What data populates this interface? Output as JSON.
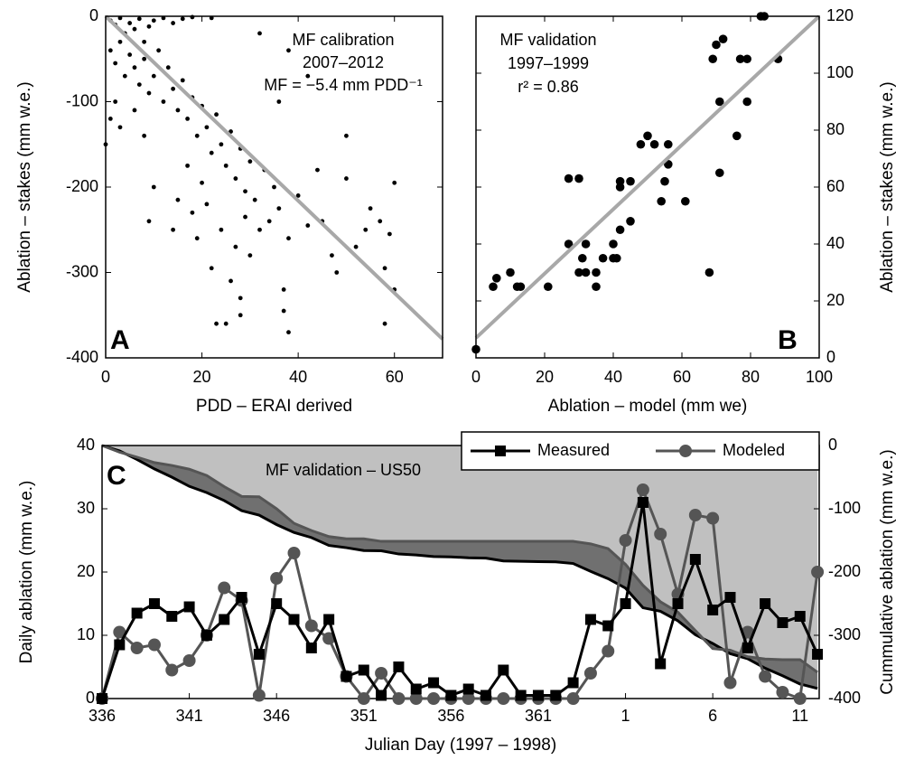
{
  "chart_data": [
    {
      "type": "scatter",
      "panel_label": "A",
      "xlabel": "PDD – ERAI derived",
      "ylabel": "Ablation – stakes (mm w.e.)",
      "annotations": [
        "MF calibration",
        "2007–2012",
        "MF = −5.4 mm PDD⁻¹"
      ],
      "y_axis_side": "left",
      "color": "#000000",
      "xlim": [
        0,
        70
      ],
      "xticks": [
        0,
        20,
        40,
        60
      ],
      "ylim": [
        -400,
        0
      ],
      "yticks": [
        -400,
        -300,
        -200,
        -100,
        0
      ],
      "fit_line": {
        "x": [
          0,
          70
        ],
        "y": [
          0,
          -378
        ],
        "color": "#a8a8a8"
      },
      "x": [
        1,
        2,
        3,
        4,
        5,
        6,
        7,
        8,
        9,
        10,
        12,
        14,
        16,
        18,
        22,
        1,
        2,
        3,
        4,
        5,
        6,
        7,
        8,
        9,
        10,
        11,
        12,
        13,
        14,
        15,
        16,
        17,
        18,
        19,
        20,
        21,
        22,
        23,
        24,
        25,
        26,
        27,
        28,
        29,
        30,
        0,
        1,
        2,
        3,
        6,
        8,
        10,
        9,
        14,
        15,
        17,
        18,
        19,
        20,
        21,
        22,
        23,
        24,
        25,
        26,
        27,
        28,
        28,
        29,
        30,
        31,
        32,
        33,
        34,
        35,
        36,
        37,
        37,
        38,
        38,
        40,
        42,
        44,
        45,
        47,
        48,
        50,
        50,
        52,
        54,
        55,
        57,
        58,
        58,
        59,
        60,
        60,
        32,
        38,
        42,
        36
      ],
      "y": [
        -5,
        -10,
        -2,
        -20,
        -8,
        -15,
        -3,
        -30,
        -12,
        -5,
        -2,
        -8,
        -3,
        -1,
        -2,
        -40,
        -55,
        -30,
        -70,
        -45,
        -60,
        -80,
        -50,
        -90,
        -70,
        -40,
        -100,
        -60,
        -85,
        -110,
        -75,
        -120,
        -95,
        -140,
        -105,
        -130,
        -160,
        -115,
        -150,
        -175,
        -135,
        -190,
        -155,
        -205,
        -170,
        -150,
        -120,
        -100,
        -130,
        -110,
        -140,
        -200,
        -240,
        -250,
        -215,
        -175,
        -230,
        -260,
        -195,
        -220,
        -295,
        -360,
        -250,
        -360,
        -310,
        -270,
        -330,
        -350,
        -235,
        -280,
        -215,
        -250,
        -180,
        -240,
        -200,
        -225,
        -320,
        -345,
        -260,
        -370,
        -210,
        -245,
        -180,
        -240,
        -280,
        -300,
        -140,
        -190,
        -270,
        -250,
        -225,
        -240,
        -295,
        -360,
        -255,
        -195,
        -320,
        -20,
        -40,
        -70,
        -100
      ]
    },
    {
      "type": "scatter",
      "panel_label": "B",
      "xlabel": "Ablation – model (mm we)",
      "ylabel": "Ablation – stakes (mm w.e.)",
      "annotations": [
        "MF validation",
        "1997–1999",
        "r² = 0.86"
      ],
      "y_axis_side": "right",
      "color": "#000000",
      "xlim": [
        0,
        100
      ],
      "xticks": [
        0,
        20,
        40,
        60,
        80,
        100
      ],
      "ylim": [
        0,
        120
      ],
      "yticks": [
        0,
        20,
        40,
        60,
        80,
        100,
        120
      ],
      "fit_line": {
        "x": [
          0,
          100
        ],
        "y": [
          7,
          120
        ],
        "color": "#a8a8a8"
      },
      "x": [
        0,
        5,
        6,
        10,
        12,
        13,
        21,
        27,
        27,
        30,
        30,
        31,
        32,
        32,
        35,
        35,
        37,
        40,
        40,
        41,
        42,
        42,
        42,
        45,
        45,
        48,
        50,
        52,
        54,
        55,
        56,
        56,
        61,
        68,
        69,
        70,
        71,
        71,
        72,
        76,
        77,
        79,
        79,
        83,
        84,
        88
      ],
      "y": [
        3,
        25,
        28,
        30,
        25,
        25,
        25,
        63,
        40,
        30,
        63,
        35,
        30,
        40,
        30,
        25,
        35,
        35,
        40,
        35,
        45,
        60,
        62,
        48,
        62,
        75,
        78,
        75,
        55,
        62,
        68,
        75,
        55,
        30,
        105,
        110,
        90,
        65,
        112,
        78,
        105,
        90,
        105,
        120,
        120,
        105
      ]
    },
    {
      "type": "line",
      "panel_label": "C",
      "xlabel": "Julian Day (1997 – 1998)",
      "ylabel": "Daily ablation (mm w.e.)",
      "y2label": "Cummulative ablation (mm w.e.)",
      "annotation": "MF validation – US50",
      "legend": "top right",
      "categories": [
        "336",
        null,
        null,
        null,
        null,
        "341",
        null,
        null,
        null,
        null,
        "346",
        null,
        null,
        null,
        null,
        "351",
        null,
        null,
        null,
        null,
        "356",
        null,
        null,
        null,
        null,
        "361",
        null,
        null,
        null,
        null,
        "1",
        null,
        null,
        null,
        null,
        "6",
        null,
        null,
        null,
        null,
        "11",
        null
      ],
      "ylim": [
        0,
        40
      ],
      "yticks": [
        0,
        10,
        20,
        30,
        40
      ],
      "y2lim": [
        -400,
        0
      ],
      "y2ticks": [
        -400,
        -300,
        -200,
        -100,
        0
      ],
      "series": [
        {
          "name": "Measured",
          "color": "#000000",
          "marker": "square",
          "values": [
            0,
            8.5,
            13.5,
            15,
            13,
            14.5,
            10,
            12.5,
            16,
            7,
            15,
            12.5,
            8,
            12.5,
            3.5,
            4.5,
            0.5,
            5,
            1.5,
            2.5,
            0.5,
            1.5,
            0.5,
            4.5,
            0.5,
            0.5,
            0.5,
            2.5,
            12.5,
            11.5,
            15,
            31,
            5.5,
            15,
            22,
            14,
            16,
            8,
            15,
            12,
            13,
            7
          ]
        },
        {
          "name": "Modeled",
          "color": "#555555",
          "marker": "circle",
          "values": [
            0,
            10.5,
            8,
            8.5,
            4.5,
            6,
            10,
            17.5,
            15.5,
            0.5,
            19,
            23,
            11.5,
            9.5,
            3.5,
            0,
            4,
            0,
            0,
            0,
            0,
            0,
            0,
            0,
            0,
            0,
            0,
            0,
            4,
            7.5,
            25,
            33,
            26,
            16.5,
            29,
            28.5,
            2.5,
            10.5,
            3.5,
            1,
            0,
            20
          ]
        }
      ],
      "cumulative": [
        {
          "axis": "y2",
          "color": "#000000",
          "values": [
            0,
            -8.5,
            -22,
            -37,
            -50,
            -64.5,
            -74.5,
            -87,
            -103,
            -110,
            -125,
            -137.5,
            -145.5,
            -158,
            -161.5,
            -166,
            -166.5,
            -171.5,
            -173,
            -175.5,
            -176,
            -177.5,
            -178,
            -182.5,
            -183,
            -183.5,
            -184,
            -186.5,
            -199,
            -210.5,
            -225.5,
            -256.5,
            -262,
            -277,
            -299,
            -313,
            -329,
            -337,
            -352,
            -364,
            -377,
            -384
          ]
        },
        {
          "axis": "y2",
          "color": "#555555",
          "values": [
            0,
            -10.5,
            -18.5,
            -27,
            -31.5,
            -37.5,
            -47.5,
            -65,
            -80.5,
            -81,
            -100,
            -123,
            -134.5,
            -144,
            -147.5,
            -147.5,
            -151.5,
            -151.5,
            -151.5,
            -151.5,
            -151.5,
            -151.5,
            -151.5,
            -151.5,
            -151.5,
            -151.5,
            -151.5,
            -151.5,
            -155.5,
            -163,
            -188,
            -221,
            -247,
            -263.5,
            -292.5,
            -321,
            -323.5,
            -334,
            -337.5,
            -338.5,
            -338.5,
            -358.5
          ]
        }
      ],
      "area_color": "#c0c0c0",
      "between_color": "#707070"
    }
  ]
}
